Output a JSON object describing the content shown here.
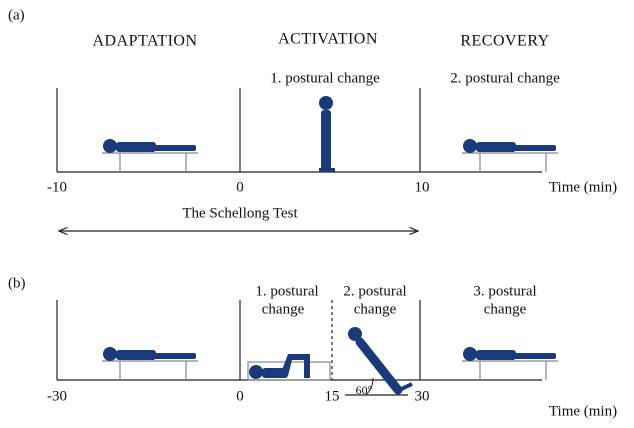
{
  "panel_a": {
    "label": "(a)",
    "phases": [
      "ADAPTATION",
      "ACTIVATION",
      "RECOVERY"
    ],
    "events": [
      "1. postural change",
      "2. postural change"
    ],
    "ticks": [
      "-10",
      "0",
      "10"
    ],
    "axis_label": "Time (min)",
    "span_label": "The Schellong Test"
  },
  "panel_b": {
    "label": "(b)",
    "events": [
      [
        "1. postural",
        "change"
      ],
      [
        "2. postural",
        "change"
      ],
      [
        "3. postural",
        "change"
      ]
    ],
    "ticks": [
      "-30",
      "0",
      "15",
      "30"
    ],
    "axis_label": "Time (min)",
    "angle_label": "60°"
  }
}
